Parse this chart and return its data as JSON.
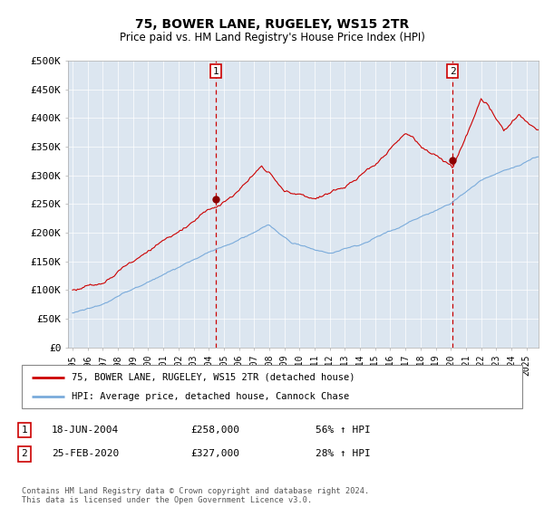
{
  "title": "75, BOWER LANE, RUGELEY, WS15 2TR",
  "subtitle": "Price paid vs. HM Land Registry's House Price Index (HPI)",
  "ylim": [
    0,
    500000
  ],
  "yticks": [
    0,
    50000,
    100000,
    150000,
    200000,
    250000,
    300000,
    350000,
    400000,
    450000,
    500000
  ],
  "ytick_labels": [
    "£0",
    "£50K",
    "£100K",
    "£150K",
    "£200K",
    "£250K",
    "£300K",
    "£350K",
    "£400K",
    "£450K",
    "£500K"
  ],
  "sale1_date": 2004.46,
  "sale1_price": 258000,
  "sale1_label": "1",
  "sale2_date": 2020.12,
  "sale2_price": 327000,
  "sale2_label": "2",
  "sale1_info": "18-JUN-2004",
  "sale1_price_str": "£258,000",
  "sale1_hpi": "56% ↑ HPI",
  "sale2_info": "25-FEB-2020",
  "sale2_price_str": "£327,000",
  "sale2_hpi": "28% ↑ HPI",
  "legend_line1": "75, BOWER LANE, RUGELEY, WS15 2TR (detached house)",
  "legend_line2": "HPI: Average price, detached house, Cannock Chase",
  "footer": "Contains HM Land Registry data © Crown copyright and database right 2024.\nThis data is licensed under the Open Government Licence v3.0.",
  "property_color": "#cc0000",
  "hpi_color": "#7aabdb",
  "sale_vline_color": "#cc0000",
  "background_color": "#ffffff",
  "plot_bg_color": "#dce6f0"
}
